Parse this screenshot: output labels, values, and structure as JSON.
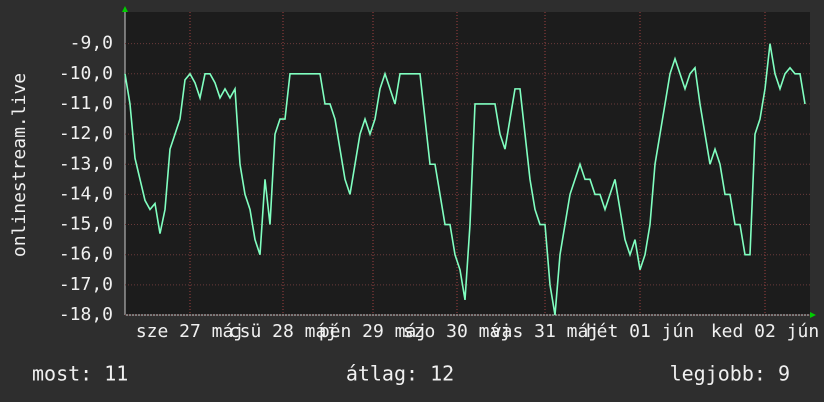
{
  "chart_data": {
    "type": "line",
    "ylabel": "onlinestream.live",
    "series": [
      {
        "color": "#80ffc0",
        "values": [
          -10.0,
          -11.0,
          -12.8,
          -13.5,
          -14.2,
          -14.5,
          -14.3,
          -15.3,
          -14.5,
          -12.5,
          -12.0,
          -11.5,
          -10.2,
          -10.0,
          -10.3,
          -10.8,
          -10.0,
          -10.0,
          -10.3,
          -10.8,
          -10.5,
          -10.8,
          -10.5,
          -13.0,
          -14.0,
          -14.5,
          -15.5,
          -16.0,
          -13.5,
          -15.0,
          -12.0,
          -11.5,
          -11.5,
          -10.0,
          -10.0,
          -10.0,
          -10.0,
          -10.0,
          -10.0,
          -10.0,
          -11.0,
          -11.0,
          -11.5,
          -12.5,
          -13.5,
          -14.0,
          -13.0,
          -12.0,
          -11.5,
          -12.0,
          -11.5,
          -10.5,
          -10.0,
          -10.5,
          -11.0,
          -10.0,
          -10.0,
          -10.0,
          -10.0,
          -10.0,
          -11.5,
          -13.0,
          -13.0,
          -14.0,
          -15.0,
          -15.0,
          -16.0,
          -16.5,
          -17.5,
          -15.0,
          -11.0,
          -11.0,
          -11.0,
          -11.0,
          -11.0,
          -12.0,
          -12.5,
          -11.5,
          -10.5,
          -10.5,
          -12.0,
          -13.5,
          -14.5,
          -15.0,
          -15.0,
          -17.0,
          -18.0,
          -16.0,
          -15.0,
          -14.0,
          -13.5,
          -13.0,
          -13.5,
          -13.5,
          -14.0,
          -14.0,
          -14.5,
          -14.0,
          -13.5,
          -14.5,
          -15.5,
          -16.0,
          -15.5,
          -16.5,
          -16.0,
          -15.0,
          -13.0,
          -12.0,
          -11.0,
          -10.0,
          -9.5,
          -10.0,
          -10.5,
          -10.0,
          -9.8,
          -11.0,
          -12.0,
          -13.0,
          -12.5,
          -13.0,
          -14.0,
          -14.0,
          -15.0,
          -15.0,
          -16.0,
          -16.0,
          -12.0,
          -11.5,
          -10.5,
          -9.0,
          -10.0,
          -10.5,
          -10.0,
          -9.8,
          -10.0,
          -10.0,
          -11.0
        ]
      }
    ],
    "xlim": [
      0,
      137
    ],
    "xticks": [
      {
        "value": 13,
        "label": "sze 27 máj"
      },
      {
        "value": 31.6,
        "label": "csü 28 máj"
      },
      {
        "value": 49.6,
        "label": "pén 29 máj"
      },
      {
        "value": 66.4,
        "label": "szo 30 máj"
      },
      {
        "value": 84,
        "label": "vas 31 máj"
      },
      {
        "value": 103,
        "label": "hét 01 jún"
      },
      {
        "value": 128,
        "label": "ked 02 jún"
      }
    ],
    "ylim": [
      -18,
      -7.95
    ],
    "yticks": [
      {
        "value": -18,
        "label": "-18,0"
      },
      {
        "value": -17,
        "label": "-17,0"
      },
      {
        "value": -16,
        "label": "-16,0"
      },
      {
        "value": -15,
        "label": "-15,0"
      },
      {
        "value": -14,
        "label": "-14,0"
      },
      {
        "value": -13,
        "label": "-13,0"
      },
      {
        "value": -12,
        "label": "-12,0"
      },
      {
        "value": -11,
        "label": "-11,0"
      },
      {
        "value": -10,
        "label": "-10,0"
      },
      {
        "value": -9,
        "label": "-9,0"
      }
    ],
    "grid": true,
    "legend": [
      "most: 11",
      "átlag: 12",
      "legjobb: 9"
    ]
  }
}
